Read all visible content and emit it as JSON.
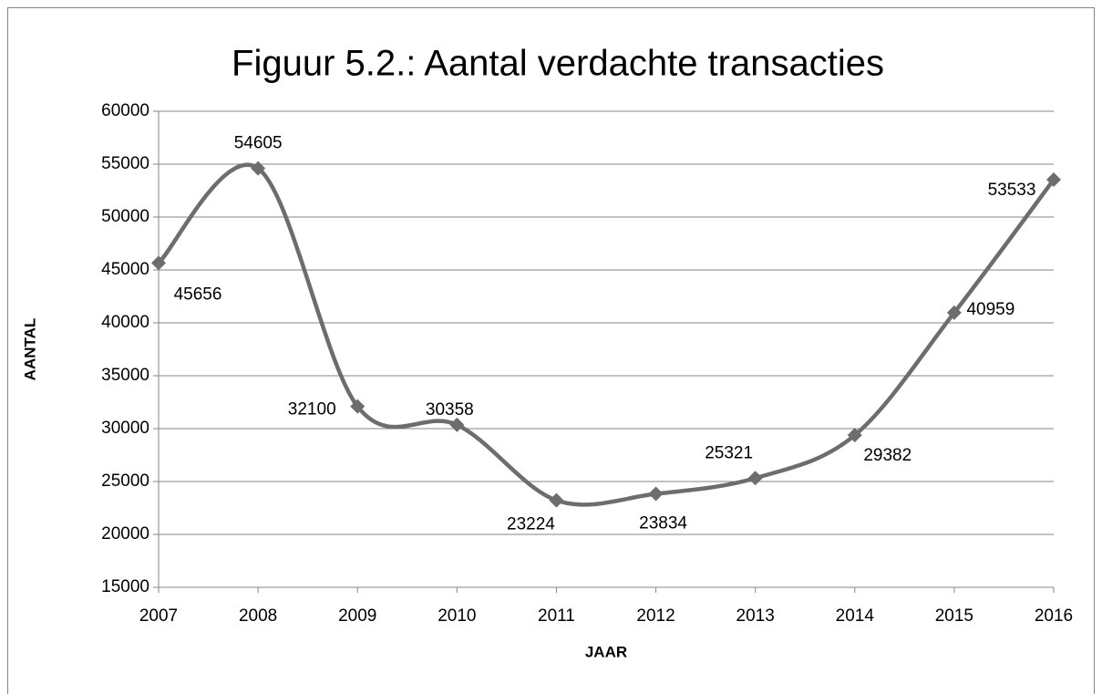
{
  "chart_data": {
    "type": "line",
    "title": "Figuur 5.2.: Aantal verdachte transacties",
    "x_label": "JAAR",
    "y_label": "AANTAL",
    "x": [
      2007,
      2008,
      2009,
      2010,
      2011,
      2012,
      2013,
      2014,
      2015,
      2016
    ],
    "series": [
      {
        "name": "Aantal",
        "color": "#6d6d6d",
        "values": [
          45656,
          54605,
          32100,
          30358,
          23224,
          23834,
          25321,
          29382,
          40959,
          53533
        ]
      }
    ],
    "xlim": [
      2007,
      2016
    ],
    "xticks": [
      2007,
      2008,
      2009,
      2010,
      2011,
      2012,
      2013,
      2014,
      2015,
      2016
    ],
    "ylim": [
      15000,
      60000
    ],
    "yticks": [
      15000,
      20000,
      25000,
      30000,
      35000,
      40000,
      45000,
      50000,
      55000,
      60000
    ],
    "grid": true,
    "smooth": true
  }
}
